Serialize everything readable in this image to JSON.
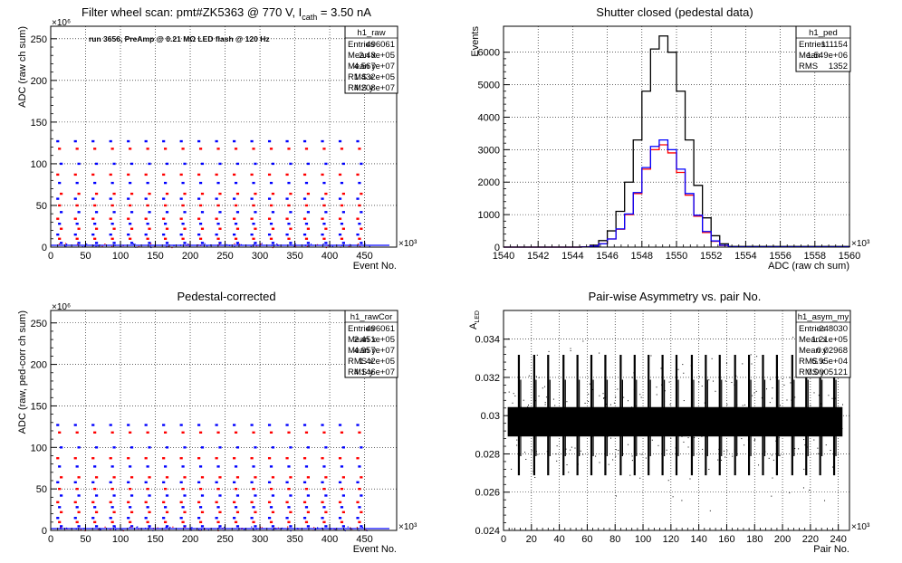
{
  "chart_data": [
    {
      "type": "scatter",
      "title": "Filter wheel scan: pmt#ZK5363 @   770 V, I",
      "title_sub": "cath",
      "title_tail": " = 3.50 nA",
      "annotation": "run 3656, PreAmp @ 0.21 MΩ LED flash @  120 Hz",
      "xlabel": "Event No.",
      "ylabel": "ADC (raw ch sum)",
      "x_exponent": "×10³",
      "y_exponent": "×10⁶",
      "xlim": [
        0,
        496
      ],
      "ylim": [
        0,
        265
      ],
      "xticks": [
        0,
        50,
        100,
        150,
        200,
        250,
        300,
        350,
        400,
        450
      ],
      "yticks": [
        0,
        50,
        100,
        150,
        200,
        250
      ],
      "grid": true,
      "levels": [
        {
          "y": 127,
          "color": "#0000ff"
        },
        {
          "y": 118,
          "color": "#ff0000"
        },
        {
          "y": 100,
          "color": "#0000ff"
        },
        {
          "y": 87,
          "color": "#ff0000"
        },
        {
          "y": 77,
          "color": "#0000ff"
        },
        {
          "y": 64,
          "color": "#ff0000"
        },
        {
          "y": 58,
          "color": "#0000ff"
        },
        {
          "y": 50,
          "color": "#ff0000"
        },
        {
          "y": 42,
          "color": "#0000ff"
        },
        {
          "y": 34,
          "color": "#ff0000"
        },
        {
          "y": 28,
          "color": "#0000ff"
        },
        {
          "y": 22,
          "color": "#ff0000"
        },
        {
          "y": 15,
          "color": "#0000ff"
        },
        {
          "y": 10,
          "color": "#ff0000"
        },
        {
          "y": 5,
          "color": "#0000ff"
        }
      ],
      "stats": {
        "title": "h1_raw",
        "rows": [
          {
            "label": "Entries",
            "value": "496061"
          },
          {
            "label": "Mean x",
            "value": "2.48e+05"
          },
          {
            "label": "Mean y",
            "value": "4.567e+07"
          },
          {
            "label": "RMS x",
            "value": "1.432e+05"
          },
          {
            "label": "RMS y",
            "value": "4.208e+07"
          }
        ]
      }
    },
    {
      "type": "line",
      "title": "Shutter closed (pedestal data)",
      "xlabel": "ADC (raw ch sum)",
      "ylabel": "Events",
      "x_exponent": "×10³",
      "xlim": [
        1540,
        1560
      ],
      "ylim": [
        0,
        6800
      ],
      "xticks": [
        1540,
        1542,
        1544,
        1546,
        1548,
        1550,
        1552,
        1554,
        1556,
        1558,
        1560
      ],
      "yticks": [
        0,
        1000,
        2000,
        3000,
        4000,
        5000,
        6000
      ],
      "grid": true,
      "series": [
        {
          "color": "#000000",
          "x": [
            1540,
            1544,
            1544.5,
            1545,
            1545.5,
            1546,
            1546.5,
            1547,
            1547.5,
            1548,
            1548.5,
            1549,
            1549.5,
            1550,
            1550.5,
            1551,
            1551.5,
            1552,
            1552.5,
            1553,
            1560
          ],
          "y": [
            0,
            0,
            10,
            60,
            200,
            500,
            1100,
            2000,
            3300,
            4800,
            6100,
            6500,
            6000,
            4800,
            3300,
            1900,
            900,
            350,
            100,
            20,
            0
          ]
        },
        {
          "color": "#ff0000",
          "x": [
            1540,
            1544.5,
            1545,
            1545.5,
            1546,
            1546.5,
            1547,
            1547.5,
            1548,
            1548.5,
            1549,
            1549.5,
            1550,
            1550.5,
            1551,
            1551.5,
            1552,
            1552.5,
            1553,
            1560
          ],
          "y": [
            0,
            5,
            30,
            100,
            250,
            550,
            1000,
            1650,
            2400,
            3000,
            3150,
            2900,
            2300,
            1600,
            950,
            450,
            180,
            50,
            10,
            0
          ]
        },
        {
          "color": "#0000ff",
          "x": [
            1540,
            1544.5,
            1545,
            1545.5,
            1546,
            1546.5,
            1547,
            1547.5,
            1548,
            1548.5,
            1549,
            1549.5,
            1550,
            1550.5,
            1551,
            1551.5,
            1552,
            1552.5,
            1553,
            1560
          ],
          "y": [
            0,
            5,
            30,
            100,
            250,
            560,
            1020,
            1680,
            2450,
            3100,
            3300,
            3000,
            2400,
            1650,
            980,
            480,
            190,
            55,
            10,
            0
          ]
        }
      ],
      "stats": {
        "title": "h1_ped",
        "rows": [
          {
            "label": "Entries",
            "value": "111154"
          },
          {
            "label": "Mean",
            "value": "1.549e+06"
          },
          {
            "label": "RMS",
            "value": "1352"
          }
        ]
      }
    },
    {
      "type": "scatter",
      "title": "Pedestal-corrected",
      "xlabel": "Event No.",
      "ylabel": "ADC (raw, ped-corr ch sum)",
      "x_exponent": "×10³",
      "y_exponent": "×10⁶",
      "xlim": [
        0,
        496
      ],
      "ylim": [
        0,
        265
      ],
      "xticks": [
        0,
        50,
        100,
        150,
        200,
        250,
        300,
        350,
        400,
        450
      ],
      "yticks": [
        0,
        50,
        100,
        150,
        200,
        250
      ],
      "grid": true,
      "levels": [
        {
          "y": 127,
          "color": "#0000ff"
        },
        {
          "y": 118,
          "color": "#ff0000"
        },
        {
          "y": 100,
          "color": "#0000ff"
        },
        {
          "y": 87,
          "color": "#ff0000"
        },
        {
          "y": 77,
          "color": "#0000ff"
        },
        {
          "y": 64,
          "color": "#ff0000"
        },
        {
          "y": 58,
          "color": "#0000ff"
        },
        {
          "y": 50,
          "color": "#ff0000"
        },
        {
          "y": 42,
          "color": "#0000ff"
        },
        {
          "y": 34,
          "color": "#ff0000"
        },
        {
          "y": 28,
          "color": "#0000ff"
        },
        {
          "y": 22,
          "color": "#ff0000"
        },
        {
          "y": 15,
          "color": "#0000ff"
        },
        {
          "y": 10,
          "color": "#ff0000"
        },
        {
          "y": 5,
          "color": "#0000ff"
        }
      ],
      "stats": {
        "title": "h1_rawCor",
        "rows": [
          {
            "label": "Entries",
            "value": "496061"
          },
          {
            "label": "Mean x",
            "value": "2.451e+05"
          },
          {
            "label": "Mean y",
            "value": "4.957e+07"
          },
          {
            "label": "RMS x",
            "value": "1.42e+05"
          },
          {
            "label": "RMS y",
            "value": "4.146e+07"
          }
        ]
      }
    },
    {
      "type": "scatter",
      "title": "Pair-wise Asymmetry vs. pair No.",
      "xlabel": "Pair No.",
      "ylabel": "A",
      "ylabel_sub": "LED",
      "x_exponent": "×10³",
      "xlim": [
        0,
        248
      ],
      "ylim": [
        0.024,
        0.0355
      ],
      "xticks": [
        0,
        20,
        40,
        60,
        80,
        100,
        120,
        140,
        160,
        180,
        200,
        220,
        240
      ],
      "yticks": [
        0.024,
        0.026,
        0.028,
        0.03,
        0.032,
        0.034
      ],
      "grid": true,
      "band": {
        "center": 0.02968,
        "halfwidth": 0.0005121,
        "x_end": 243
      },
      "spikes": [
        11,
        22,
        32,
        43,
        53,
        63,
        73,
        84,
        94,
        104,
        114,
        124,
        135,
        145,
        155,
        166,
        176,
        186,
        196,
        207,
        217,
        227,
        237
      ],
      "stats": {
        "title": "h1_asym_my",
        "rows": [
          {
            "label": "Entries",
            "value": "248030"
          },
          {
            "label": "Mean x",
            "value": "1.21e+05"
          },
          {
            "label": "Mean y",
            "value": "0.02968"
          },
          {
            "label": "RMS x",
            "value": "6.95e+04"
          },
          {
            "label": "RMS y",
            "value": "0.0005121"
          }
        ]
      }
    }
  ]
}
